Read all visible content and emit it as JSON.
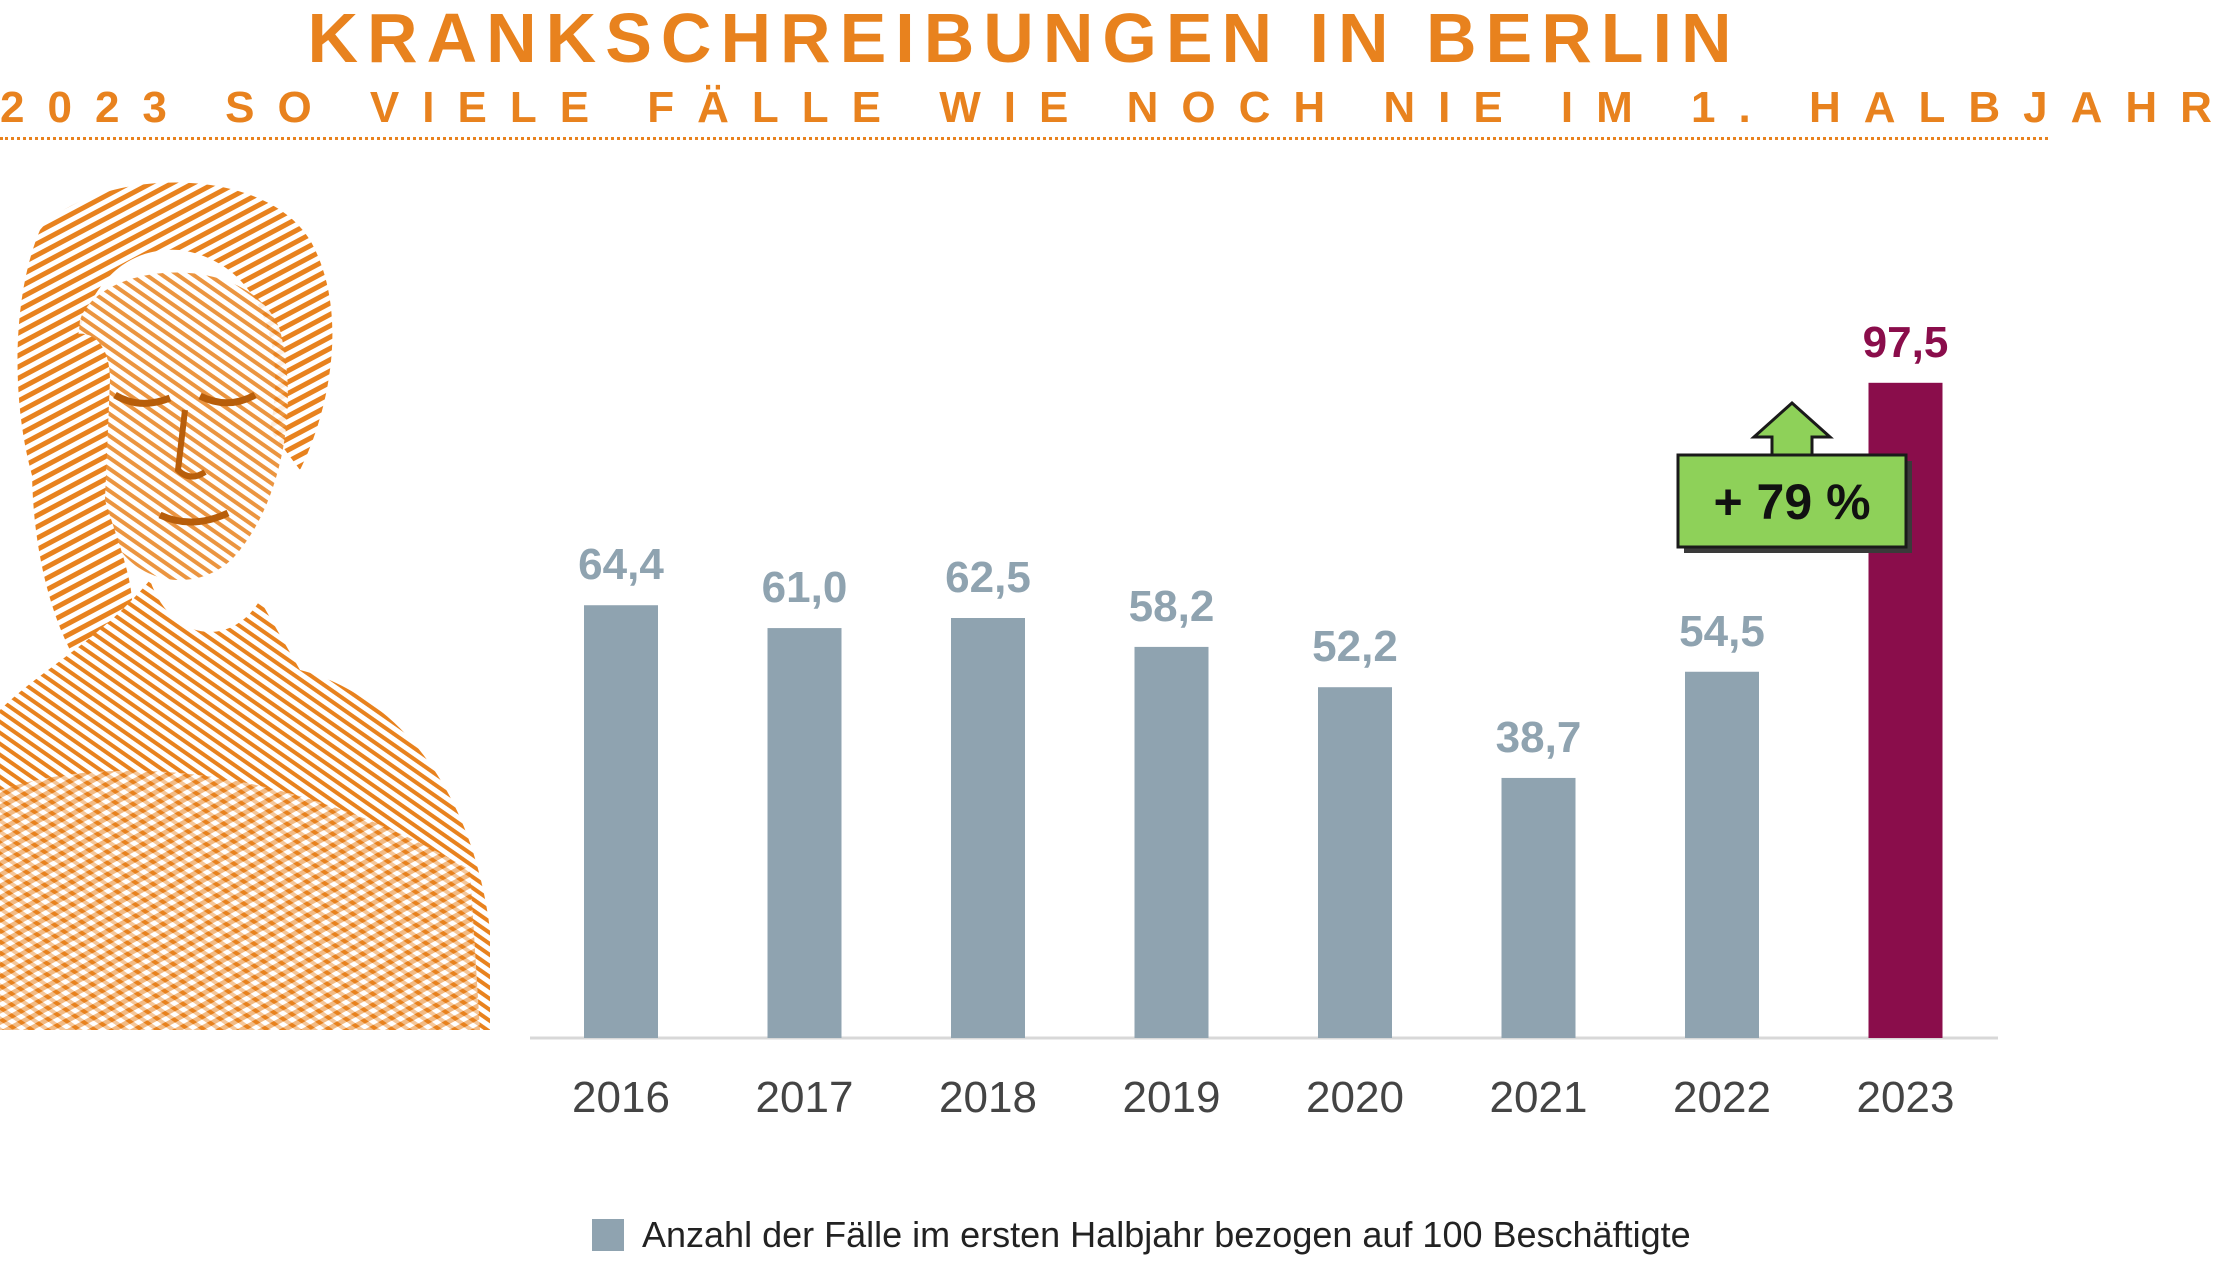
{
  "header": {
    "title": "KRANKSCHREIBUNGEN IN BERLIN",
    "subtitle": "2023 SO VIELE FÄLLE WIE NOCH NIE IM 1. HALBJAHR"
  },
  "illustration": {
    "icon": "woman-headache-icon",
    "color": "#E8821E"
  },
  "chart_data": {
    "type": "bar",
    "categories": [
      "2016",
      "2017",
      "2018",
      "2019",
      "2020",
      "2021",
      "2022",
      "2023"
    ],
    "values": [
      64.4,
      61.0,
      62.5,
      58.2,
      52.2,
      38.7,
      54.5,
      97.5
    ],
    "value_labels": [
      "64,4",
      "61,0",
      "62,5",
      "58,2",
      "52,2",
      "38,7",
      "54,5",
      "97,5"
    ],
    "highlight_index": 7,
    "colors": {
      "default": "#8FA3B0",
      "highlight": "#8A0D4B",
      "axis": "#D8D8D8"
    },
    "ylim": [
      0,
      100
    ],
    "grid": false,
    "legend": {
      "position": "bottom",
      "label": "Anzahl der Fälle im ersten Halbjahr bezogen auf 100 Beschäftigte"
    },
    "annotation": {
      "text": "+ 79 %",
      "color": "#8ED159"
    }
  }
}
